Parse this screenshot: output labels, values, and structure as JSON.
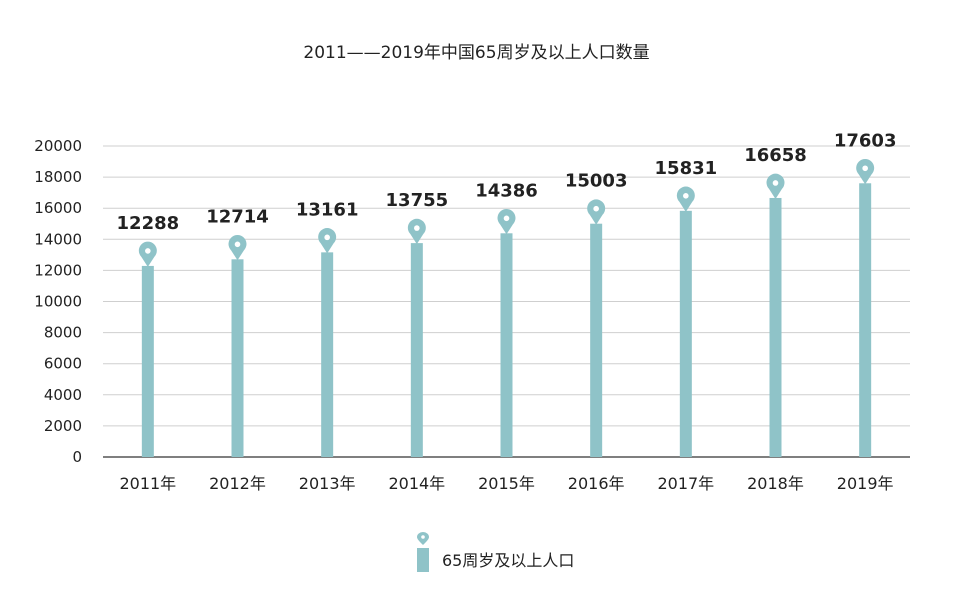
{
  "chart_data": {
    "type": "bar",
    "title": "2011——2019年中国65周岁及以上人口数量",
    "categories": [
      "2011年",
      "2012年",
      "2013年",
      "2014年",
      "2015年",
      "2016年",
      "2017年",
      "2018年",
      "2019年"
    ],
    "series": [
      {
        "name": "65周岁及以上人口",
        "values": [
          12288,
          12714,
          13161,
          13755,
          14386,
          15003,
          15831,
          16658,
          17603
        ]
      }
    ],
    "data_labels": [
      "12288",
      "12714",
      "13161",
      "13755",
      "14386",
      "15003",
      "15831",
      "16658",
      "17603"
    ],
    "ylim": [
      0,
      20000
    ],
    "yticks": [
      "0",
      "2000",
      "4000",
      "6000",
      "8000",
      "10000",
      "12000",
      "14000",
      "16000",
      "18000",
      "20000"
    ],
    "grid": true,
    "legend_position": "bottom-center",
    "bar_color": "#8fc3c8",
    "marker_icon": "map-pin-icon"
  }
}
